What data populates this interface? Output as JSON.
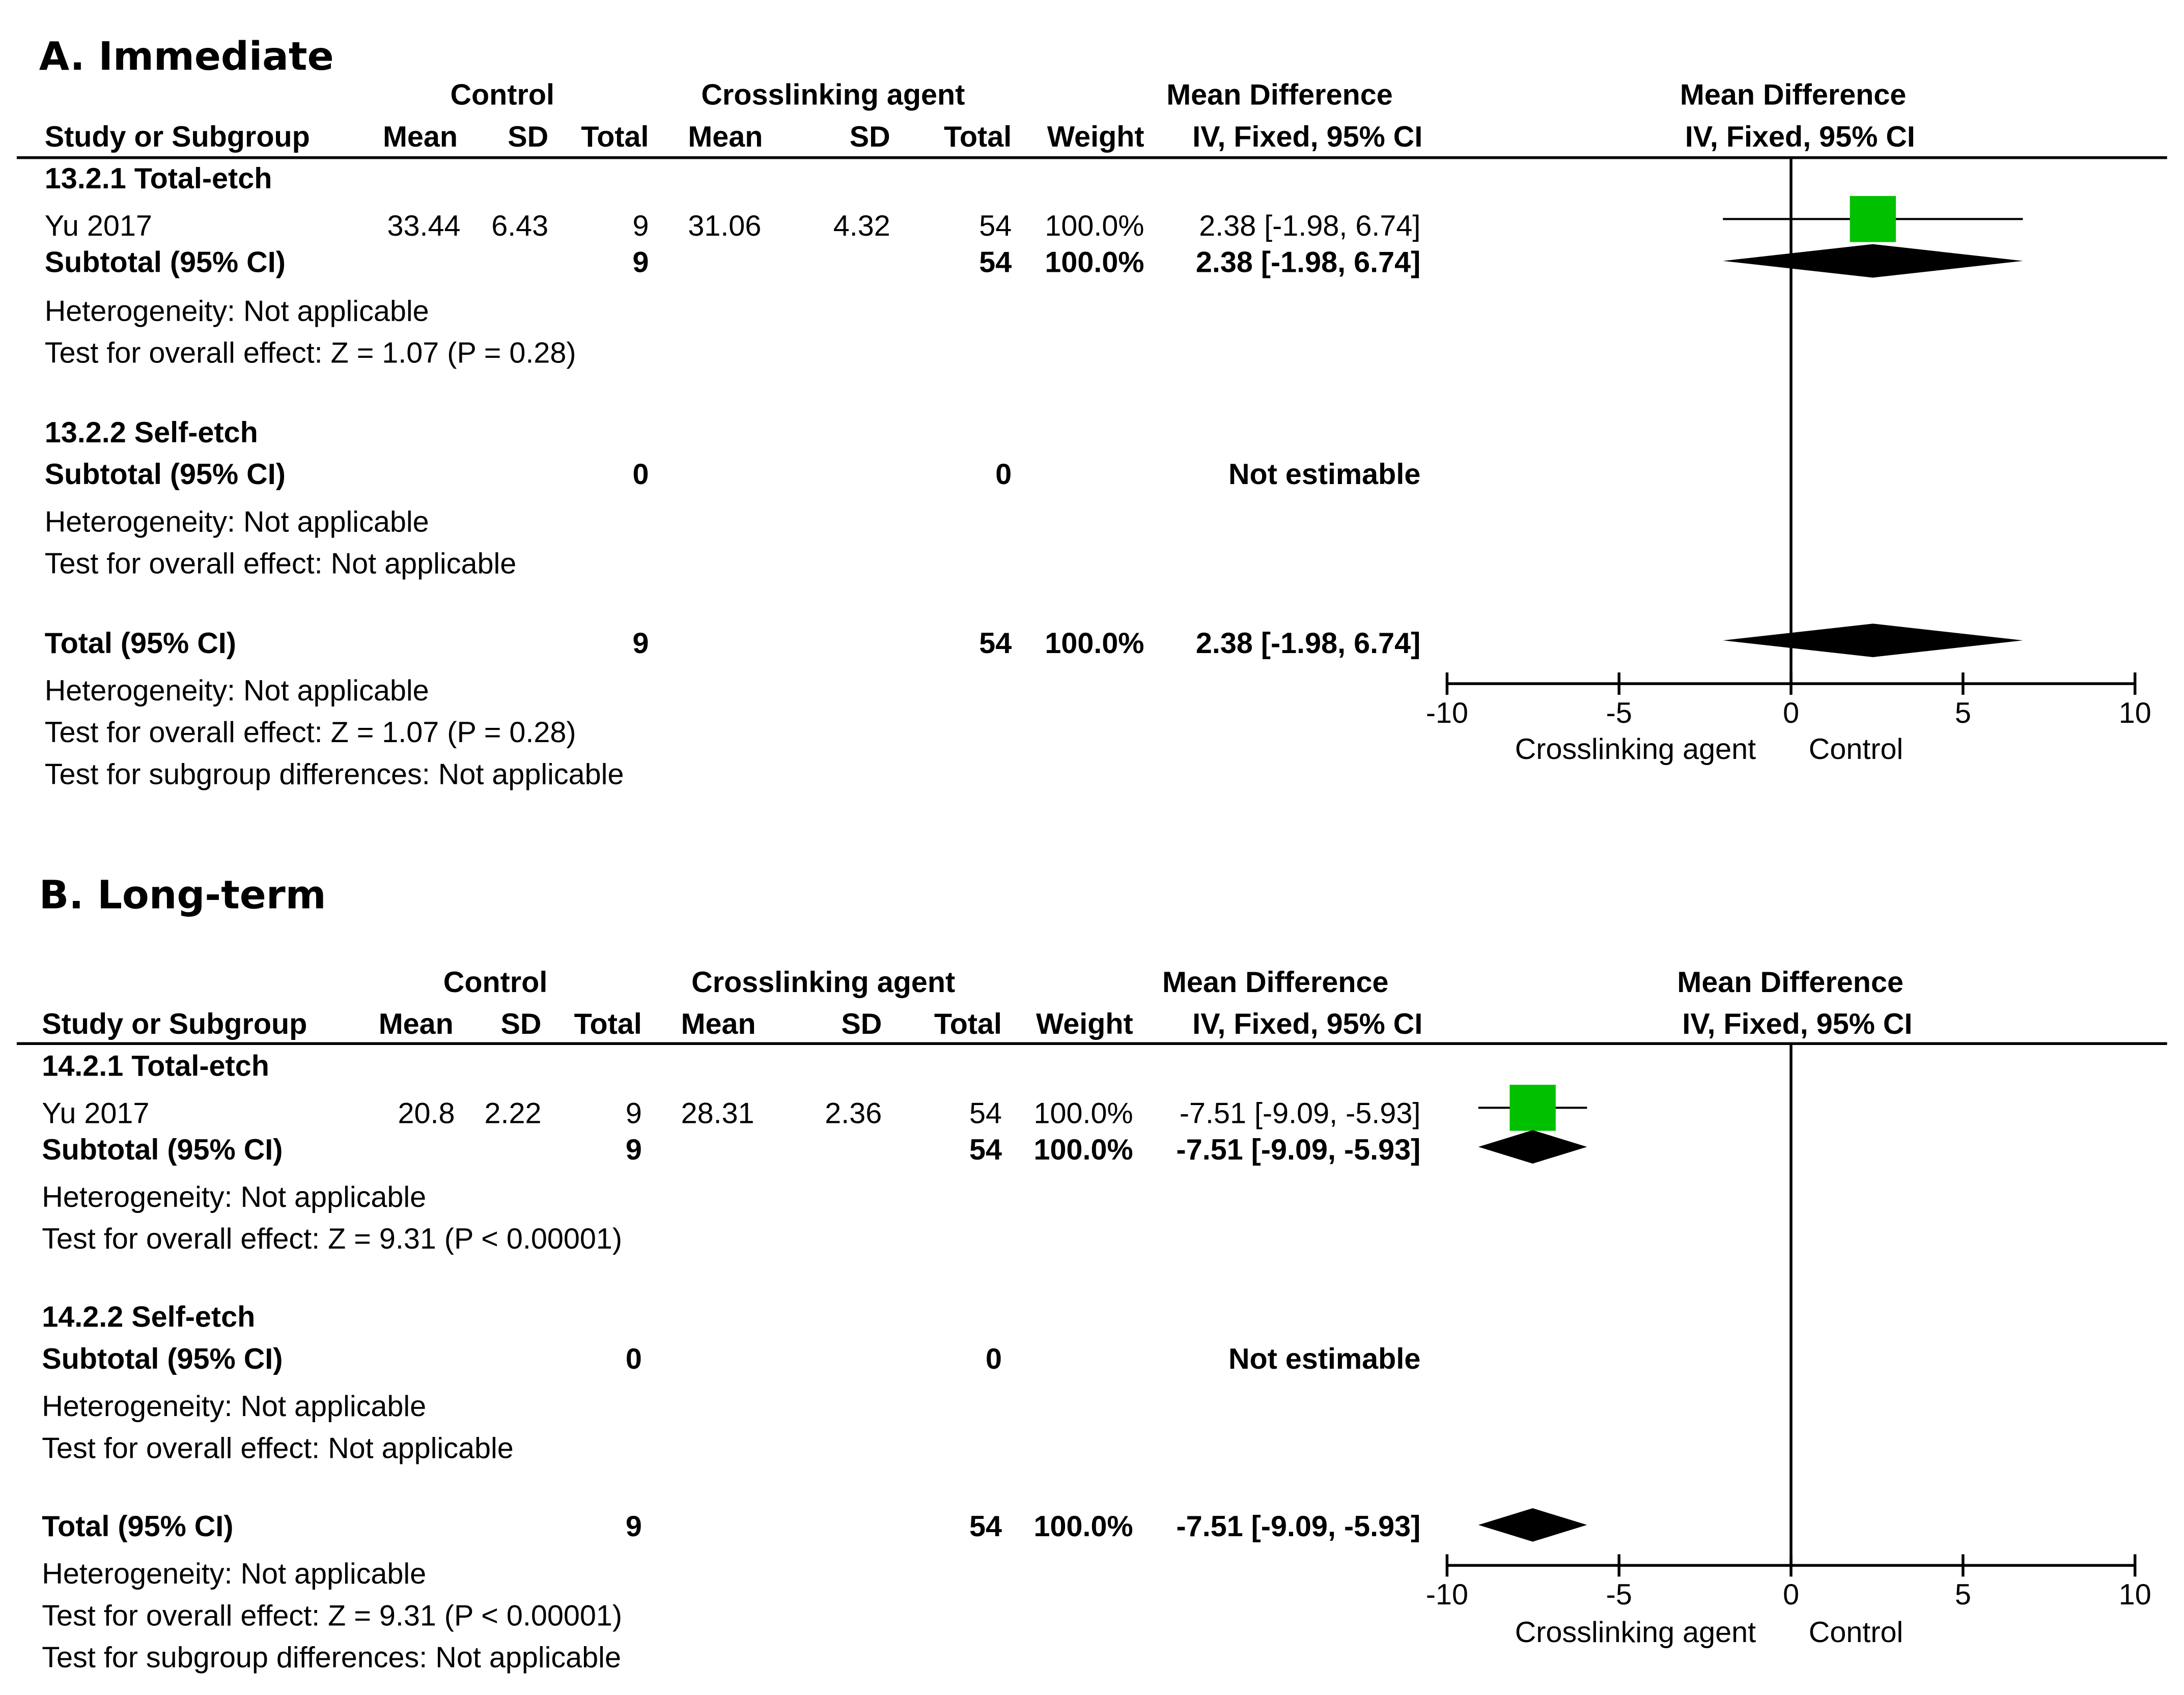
{
  "chart_data": [
    {
      "type": "forest",
      "panel_title": "A. Immediate",
      "headers": {
        "control_group": "Control",
        "treatment_group": "Crosslinking agent",
        "effect_measure": "Mean Difference",
        "method": "IV, Fixed, 95% CI",
        "plot_measure": "Mean Difference",
        "plot_method": "IV, Fixed, 95% CI",
        "study_col": "Study or Subgroup",
        "mean": "Mean",
        "sd": "SD",
        "total": "Total",
        "weight": "Weight"
      },
      "subgroups": [
        {
          "label": "13.2.1 Total-etch",
          "studies": [
            {
              "name": "Yu 2017",
              "control_mean": "33.44",
              "control_sd": "6.43",
              "control_total": "9",
              "treat_mean": "31.06",
              "treat_sd": "4.32",
              "treat_total": "54",
              "weight": "100.0%",
              "effect_text": "2.38 [-1.98, 6.74]",
              "md": 2.38,
              "lower": -1.98,
              "upper": 6.74
            }
          ],
          "subtotal_label": "Subtotal (95% CI)",
          "subtotal_control_total": "9",
          "subtotal_treat_total": "54",
          "subtotal_weight": "100.0%",
          "subtotal_effect_text": "2.38 [-1.98, 6.74]",
          "subtotal_md": 2.38,
          "subtotal_lower": -1.98,
          "subtotal_upper": 6.74,
          "heterogeneity": "Heterogeneity: Not applicable",
          "overall_effect": "Test for overall effect: Z = 1.07 (P = 0.28)"
        },
        {
          "label": "13.2.2 Self-etch",
          "studies": [],
          "subtotal_label": "Subtotal (95% CI)",
          "subtotal_control_total": "0",
          "subtotal_treat_total": "0",
          "subtotal_weight": "",
          "subtotal_effect_text": "Not estimable",
          "subtotal_md": null,
          "subtotal_lower": null,
          "subtotal_upper": null,
          "heterogeneity": "Heterogeneity: Not applicable",
          "overall_effect": "Test for overall effect: Not applicable"
        }
      ],
      "total": {
        "label": "Total (95% CI)",
        "control_total": "9",
        "treat_total": "54",
        "weight": "100.0%",
        "effect_text": "2.38 [-1.98, 6.74]",
        "md": 2.38,
        "lower": -1.98,
        "upper": 6.74,
        "heterogeneity": "Heterogeneity: Not applicable",
        "overall_effect": "Test for overall effect: Z = 1.07 (P = 0.28)",
        "subgroup_diff": "Test for subgroup differences: Not applicable"
      },
      "x_axis": {
        "range": [
          -10,
          10
        ],
        "ticks": [
          -10,
          -5,
          0,
          5,
          10
        ],
        "tick_labels": [
          "-10",
          "-5",
          "0",
          "5",
          "10"
        ],
        "left_label": "Crosslinking agent",
        "right_label": "Control"
      }
    },
    {
      "type": "forest",
      "panel_title": "B. Long-term",
      "headers": {
        "control_group": "Control",
        "treatment_group": "Crosslinking agent",
        "effect_measure": "Mean Difference",
        "method": "IV, Fixed, 95% CI",
        "plot_measure": "Mean Difference",
        "plot_method": "IV, Fixed, 95% CI",
        "study_col": "Study or Subgroup",
        "mean": "Mean",
        "sd": "SD",
        "total": "Total",
        "weight": "Weight"
      },
      "subgroups": [
        {
          "label": "14.2.1 Total-etch",
          "studies": [
            {
              "name": "Yu 2017",
              "control_mean": "20.8",
              "control_sd": "2.22",
              "control_total": "9",
              "treat_mean": "28.31",
              "treat_sd": "2.36",
              "treat_total": "54",
              "weight": "100.0%",
              "effect_text": "-7.51 [-9.09, -5.93]",
              "md": -7.51,
              "lower": -9.09,
              "upper": -5.93
            }
          ],
          "subtotal_label": "Subtotal (95% CI)",
          "subtotal_control_total": "9",
          "subtotal_treat_total": "54",
          "subtotal_weight": "100.0%",
          "subtotal_effect_text": "-7.51 [-9.09, -5.93]",
          "subtotal_md": -7.51,
          "subtotal_lower": -9.09,
          "subtotal_upper": -5.93,
          "heterogeneity": "Heterogeneity: Not applicable",
          "overall_effect": "Test for overall effect: Z = 9.31 (P < 0.00001)"
        },
        {
          "label": "14.2.2 Self-etch",
          "studies": [],
          "subtotal_label": "Subtotal (95% CI)",
          "subtotal_control_total": "0",
          "subtotal_treat_total": "0",
          "subtotal_weight": "",
          "subtotal_effect_text": "Not estimable",
          "subtotal_md": null,
          "subtotal_lower": null,
          "subtotal_upper": null,
          "heterogeneity": "Heterogeneity: Not applicable",
          "overall_effect": "Test for overall effect: Not applicable"
        }
      ],
      "total": {
        "label": "Total (95% CI)",
        "control_total": "9",
        "treat_total": "54",
        "weight": "100.0%",
        "effect_text": "-7.51 [-9.09, -5.93]",
        "md": -7.51,
        "lower": -9.09,
        "upper": -5.93,
        "heterogeneity": "Heterogeneity: Not applicable",
        "overall_effect": "Test for overall effect: Z = 9.31 (P < 0.00001)",
        "subgroup_diff": "Test for subgroup differences: Not applicable"
      },
      "x_axis": {
        "range": [
          -10,
          10
        ],
        "ticks": [
          -10,
          -5,
          0,
          5,
          10
        ],
        "tick_labels": [
          "-10",
          "-5",
          "0",
          "5",
          "10"
        ],
        "left_label": "Crosslinking agent",
        "right_label": "Control"
      }
    }
  ],
  "colors": {
    "study_marker": "#00c000",
    "diamond": "#000000",
    "line": "#000000"
  }
}
